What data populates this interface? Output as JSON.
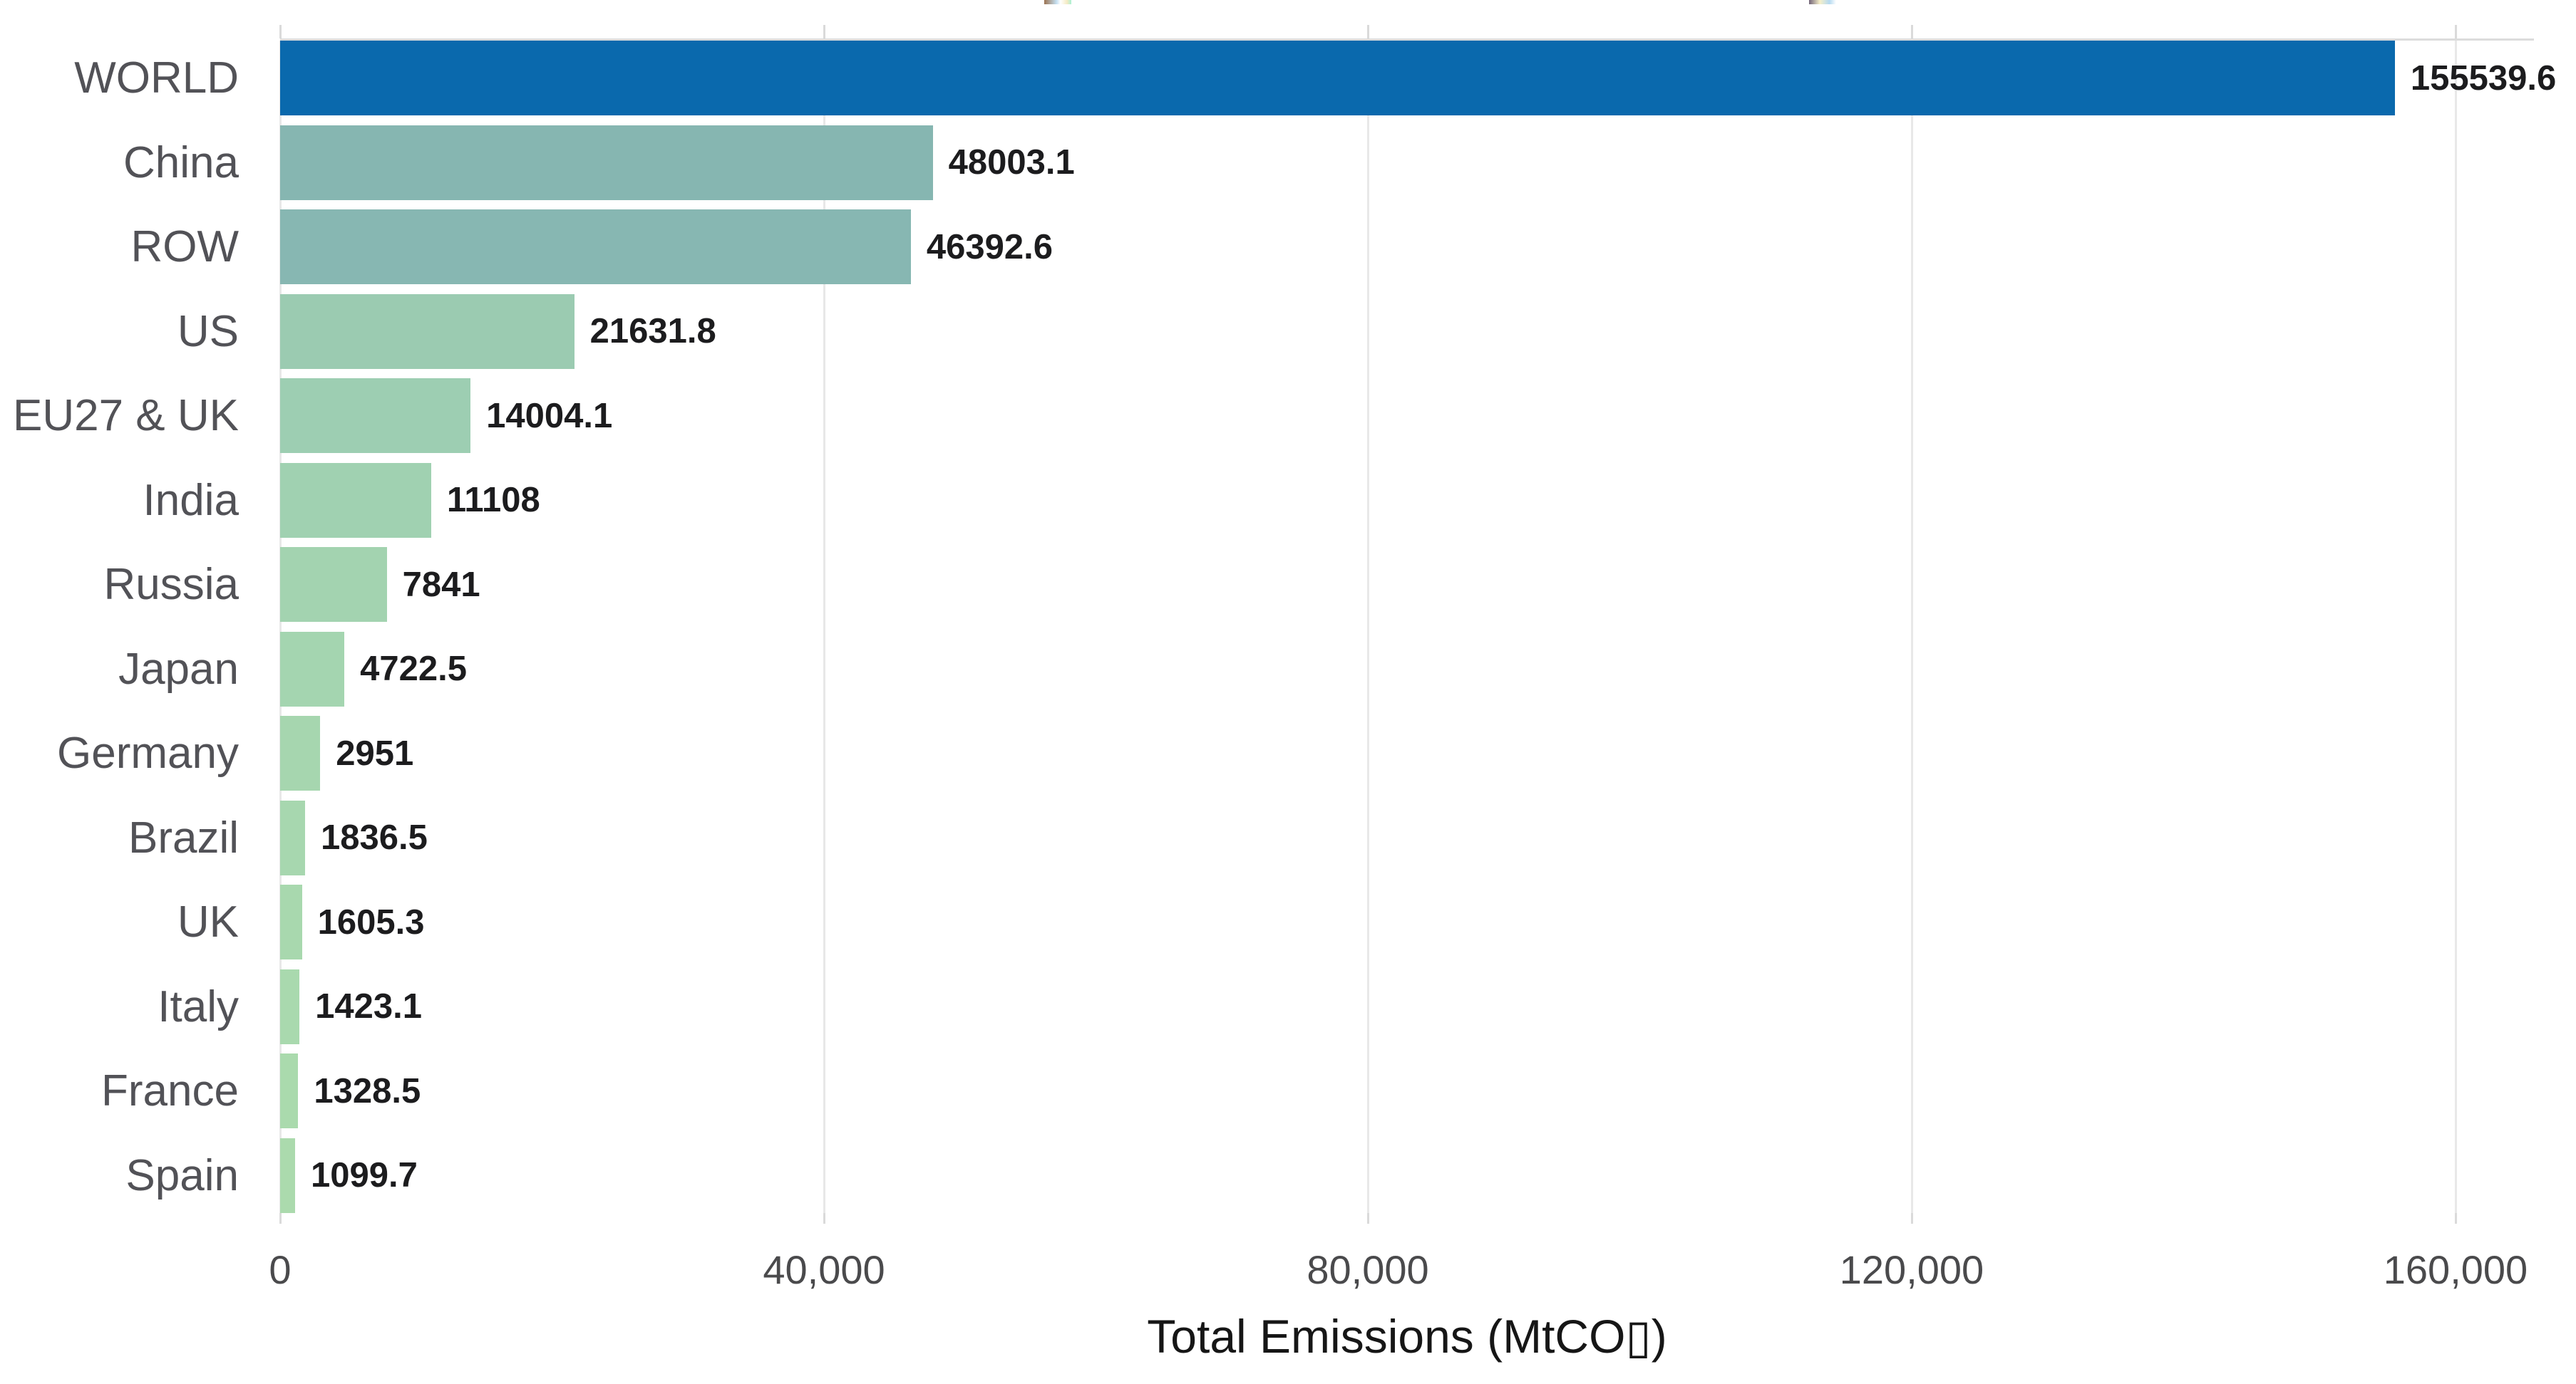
{
  "colors": {
    "background": "#ffffff",
    "grid": "#e8e8e8",
    "axis_top_line": "#dcdcdc",
    "tick_mark": "#dadada",
    "category_label_text": "#525257",
    "value_label_text": "#1c1c1e",
    "tick_label_text": "#4a4a4c",
    "axis_title_text": "#161616",
    "highlight_bar": "#0a69ad"
  },
  "chart_data": {
    "type": "bar",
    "orientation": "horizontal",
    "title": "",
    "xlabel": "Total Emissions (MtCO▯)",
    "ylabel": "",
    "categories": [
      "WORLD",
      "China",
      "ROW",
      "US",
      "EU27 & UK",
      "India",
      "Russia",
      "Japan",
      "Germany",
      "Brazil",
      "UK",
      "Italy",
      "France",
      "Spain"
    ],
    "values": [
      155539.6,
      48003.1,
      46392.6,
      21631.8,
      14004.1,
      11108,
      7841,
      4722.5,
      2951,
      1836.5,
      1605.3,
      1423.1,
      1328.5,
      1099.7
    ],
    "value_labels": [
      "155539.6",
      "48003.1",
      "46392.6",
      "21631.8",
      "14004.1",
      "11108",
      "7841",
      "4722.5",
      "2951",
      "1836.5",
      "1605.3",
      "1423.1",
      "1328.5",
      "1099.7"
    ],
    "bar_colors": [
      "#0a69ad",
      "#86b6b1",
      "#87b7b2",
      "#9bcbb1",
      "#9dceb2",
      "#a0d1b1",
      "#a3d3b0",
      "#a4d5b0",
      "#a6d6af",
      "#a7d7af",
      "#a8d8ae",
      "#a9d9ae",
      "#aadaad",
      "#abdaad"
    ],
    "x_ticks": [
      {
        "value": 0,
        "label": "0"
      },
      {
        "value": 40000,
        "label": "40,000"
      },
      {
        "value": 80000,
        "label": "80,000"
      },
      {
        "value": 120000,
        "label": "120,000"
      },
      {
        "value": 160000,
        "label": "160,000"
      }
    ],
    "xlim": [
      0,
      165767
    ],
    "grid": true,
    "legend": false
  }
}
